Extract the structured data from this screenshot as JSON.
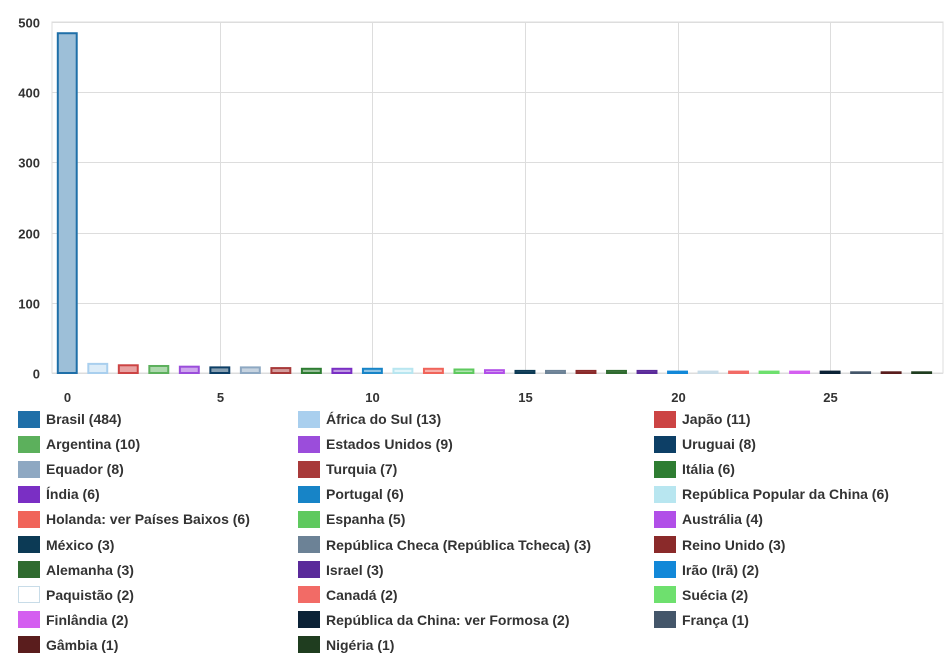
{
  "chart_data": {
    "type": "bar",
    "title": "",
    "xlabel": "",
    "ylabel": "",
    "xlim": [
      -0.5,
      28.7
    ],
    "ylim": [
      0,
      500
    ],
    "x_ticks": [
      "0",
      "5",
      "10",
      "15",
      "20",
      "25"
    ],
    "x_tick_values": [
      0,
      5,
      10,
      15,
      20,
      25
    ],
    "y_ticks": [
      "0",
      "100",
      "200",
      "300",
      "400",
      "500"
    ],
    "y_tick_values": [
      0,
      100,
      200,
      300,
      400,
      500
    ],
    "grid": true,
    "legend_position": "bottom",
    "series": [
      {
        "label": "Brasil (484)",
        "value": 484,
        "color": "#1f6fa8",
        "fill": "#9dbfd8"
      },
      {
        "label": "África do Sul (13)",
        "value": 13,
        "color": "#a9cfee",
        "fill": "#dcecf8"
      },
      {
        "label": "Japão (11)",
        "value": 11,
        "color": "#cc4444",
        "fill": "#e8a2a2"
      },
      {
        "label": "Argentina (10)",
        "value": 10,
        "color": "#5cb05c",
        "fill": "#add8ad"
      },
      {
        "label": "Estados Unidos (9)",
        "value": 9,
        "color": "#9b4ddb",
        "fill": "#cda6ed"
      },
      {
        "label": "Uruguai (8)",
        "value": 8,
        "color": "#0d3f66",
        "fill": "#869fb2"
      },
      {
        "label": "Equador (8)",
        "value": 8,
        "color": "#8ea8c2",
        "fill": "#c6d3e0"
      },
      {
        "label": "Turquia (7)",
        "value": 7,
        "color": "#a83a3a",
        "fill": "#d39c9c"
      },
      {
        "label": "Itália (6)",
        "value": 6,
        "color": "#2e7d32",
        "fill": "#96be98"
      },
      {
        "label": "Índia (6)",
        "value": 6,
        "color": "#7a2fc4",
        "fill": "#bc97e1"
      },
      {
        "label": "Portugal (6)",
        "value": 6,
        "color": "#1784c7",
        "fill": "#8bc1e3"
      },
      {
        "label": "República Popular da China (6)",
        "value": 6,
        "color": "#b8e6f0",
        "fill": "#e3f6fa"
      },
      {
        "label": "Holanda: ver Países Baixos (6)",
        "value": 6,
        "color": "#f0645a",
        "fill": "#f7b1ac"
      },
      {
        "label": "Espanha (5)",
        "value": 5,
        "color": "#5fc95f",
        "fill": "#afe4af"
      },
      {
        "label": "Austrália (4)",
        "value": 4,
        "color": "#b14fe8",
        "fill": "#d8a7f3"
      },
      {
        "label": "México (3)",
        "value": 3,
        "color": "#0c3a55",
        "fill": "#859caa"
      },
      {
        "label": "República Checa (República Tcheca) (3)",
        "value": 3,
        "color": "#6c8296",
        "fill": "#b5c0ca"
      },
      {
        "label": "Reino Unido (3)",
        "value": 3,
        "color": "#8a2a2a",
        "fill": "#c49494"
      },
      {
        "label": "Alemanha (3)",
        "value": 3,
        "color": "#2f6b2f",
        "fill": "#97b597"
      },
      {
        "label": "Israel (3)",
        "value": 3,
        "color": "#5a2a9a",
        "fill": "#ac94cc"
      },
      {
        "label": "Irão (Irã) (2)",
        "value": 2,
        "color": "#1288d8",
        "fill": "#88c3eb"
      },
      {
        "label": "Paquistão (2)",
        "value": 2,
        "color": "#c8dce8",
        "fill": "#ffffff"
      },
      {
        "label": "Canadá (2)",
        "value": 2,
        "color": "#f26b66",
        "fill": "#f8b5b2"
      },
      {
        "label": "Suécia (2)",
        "value": 2,
        "color": "#6ee06e",
        "fill": "#b6efb6"
      },
      {
        "label": "Finlândia (2)",
        "value": 2,
        "color": "#d45ff0",
        "fill": "#e9aff7"
      },
      {
        "label": "República da China: ver Formosa (2)",
        "value": 2,
        "color": "#0b2236",
        "fill": "#85909a"
      },
      {
        "label": "França (1)",
        "value": 1,
        "color": "#44566a",
        "fill": "#a1aab4"
      },
      {
        "label": "Gâmbia (1)",
        "value": 1,
        "color": "#5a1d1d",
        "fill": "#ac8e8e"
      },
      {
        "label": "Nigéria (1)",
        "value": 1,
        "color": "#1f3d1f",
        "fill": "#8f9e8f"
      }
    ]
  }
}
